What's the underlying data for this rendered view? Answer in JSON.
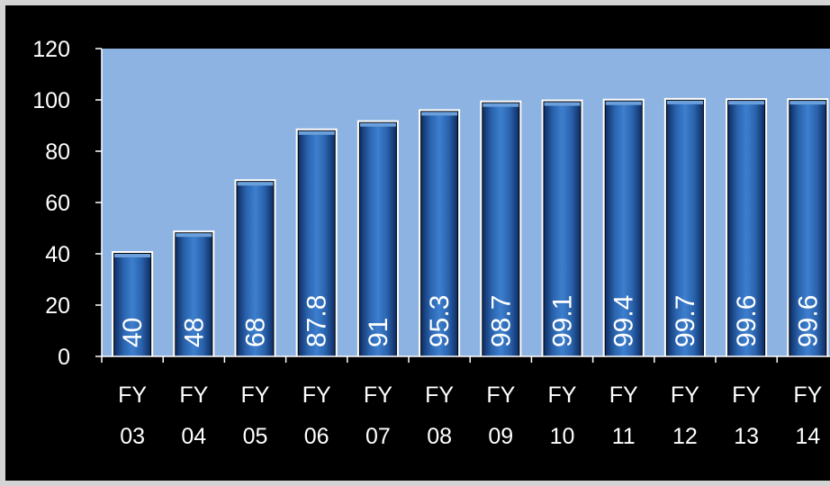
{
  "chart_data": {
    "type": "bar",
    "categories": [
      [
        "FY",
        "03"
      ],
      [
        "FY",
        "04"
      ],
      [
        "FY",
        "05"
      ],
      [
        "FY",
        "06"
      ],
      [
        "FY",
        "07"
      ],
      [
        "FY",
        "08"
      ],
      [
        "FY",
        "09"
      ],
      [
        "FY",
        "10"
      ],
      [
        "FY",
        "11"
      ],
      [
        "FY",
        "12"
      ],
      [
        "FY",
        "13"
      ],
      [
        "FY",
        "14"
      ]
    ],
    "values": [
      40,
      48,
      68,
      87.8,
      91,
      95.3,
      98.7,
      99.1,
      99.4,
      99.7,
      99.6,
      99.6
    ],
    "data_labels": [
      "40",
      "48",
      "68",
      "87.8",
      "91",
      "95.3",
      "98.7",
      "99.1",
      "99.4",
      "99.7",
      "99.6",
      "99.6"
    ],
    "title": "",
    "xlabel": "",
    "ylabel": "",
    "ylim": [
      0,
      120
    ],
    "yticks": [
      0,
      20,
      40,
      60,
      80,
      100,
      120
    ],
    "grid": false,
    "legend": "none",
    "colors": {
      "background": "#000000",
      "plot_area": "#8db3e2",
      "bar": "#2e6bb8",
      "bar_dark": "#0f2f66",
      "bar_outline": "#ffffff",
      "text": "#ffffff",
      "frame": "#d4d4d4"
    }
  }
}
